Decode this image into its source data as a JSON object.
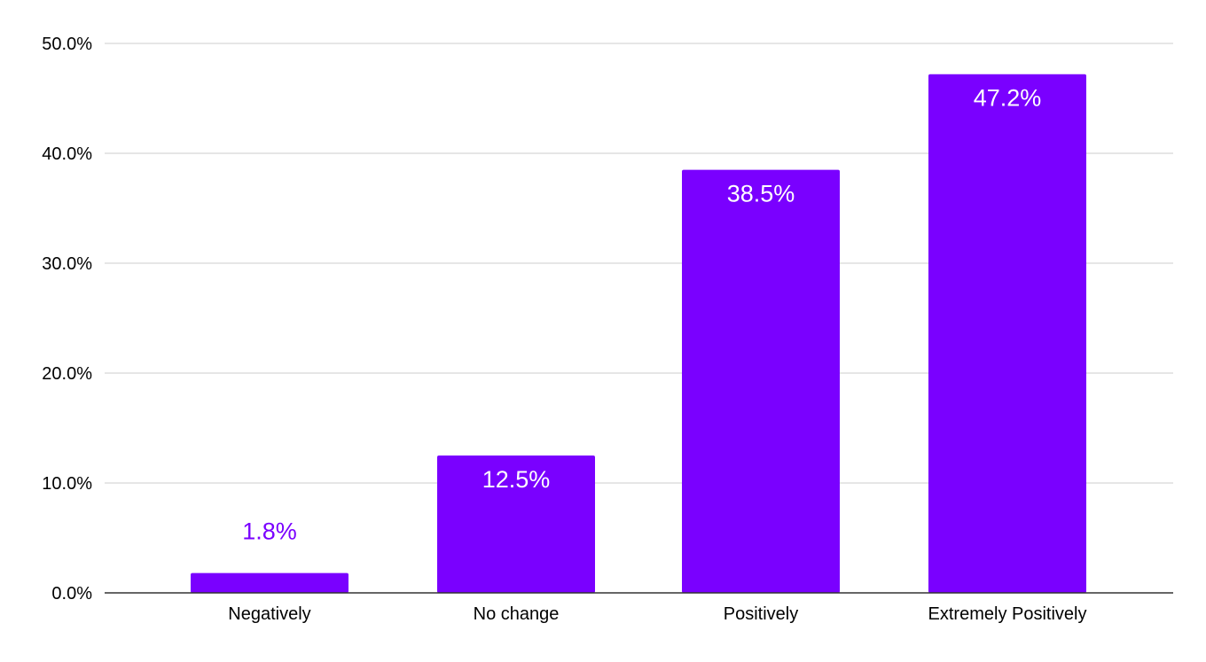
{
  "chart_data": {
    "type": "bar",
    "title": "",
    "xlabel": "",
    "ylabel": "",
    "categories": [
      "Negatively",
      "No change",
      "Positively",
      "Extremely Positively"
    ],
    "values": [
      1.8,
      12.5,
      38.5,
      47.2
    ],
    "value_labels": [
      "1.8%",
      "12.5%",
      "38.5%",
      "47.2%"
    ],
    "ylim": [
      0,
      50
    ],
    "yticks": [
      0,
      10,
      20,
      30,
      40,
      50
    ],
    "ytick_labels": [
      "0.0%",
      "10.0%",
      "20.0%",
      "30.0%",
      "40.0%",
      "50.0%"
    ],
    "grid": true,
    "legend": "none",
    "colors": {
      "bar": "#7a00ff",
      "label_inside": "#ffffff",
      "label_outside": "#7a00ff",
      "grid": "#cccccc",
      "axis": "#333333",
      "text": "#000000"
    }
  }
}
